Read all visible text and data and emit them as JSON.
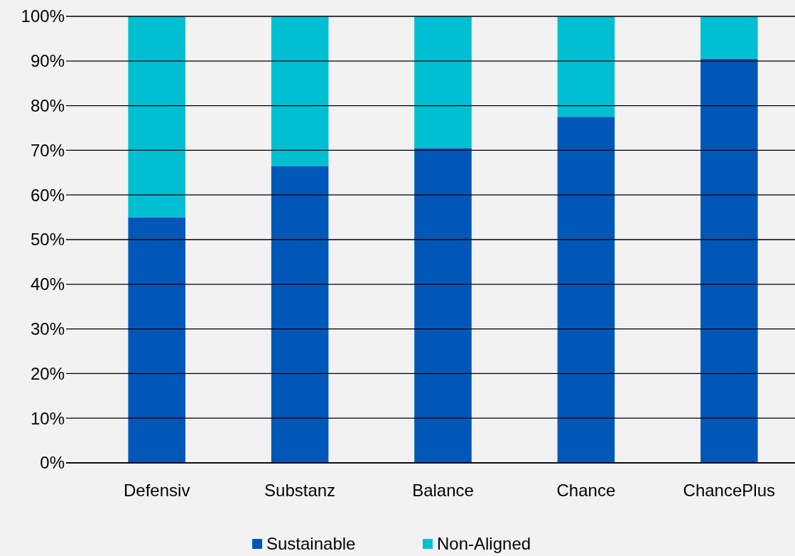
{
  "chart_data": {
    "type": "bar",
    "stacked": true,
    "categories": [
      "Defensiv",
      "Substanz",
      "Balance",
      "Chance",
      "ChancePlus"
    ],
    "series": [
      {
        "name": "Sustainable",
        "color": "#0057b8",
        "values": [
          55,
          66.5,
          70.5,
          77.5,
          90.5
        ]
      },
      {
        "name": "Non-Aligned",
        "color": "#00bfd3",
        "values": [
          45,
          33.5,
          29.5,
          22.5,
          9.5
        ]
      }
    ],
    "ylim": [
      0,
      100
    ],
    "yticks": [
      {
        "value": 0,
        "label": "0%"
      },
      {
        "value": 10,
        "label": "10%"
      },
      {
        "value": 20,
        "label": "20%"
      },
      {
        "value": 30,
        "label": "30%"
      },
      {
        "value": 40,
        "label": "40%"
      },
      {
        "value": 50,
        "label": "50%"
      },
      {
        "value": 60,
        "label": "60%"
      },
      {
        "value": 70,
        "label": "70%"
      },
      {
        "value": 80,
        "label": "80%"
      },
      {
        "value": 90,
        "label": "90%"
      },
      {
        "value": 100,
        "label": "100%"
      }
    ],
    "grid": "y",
    "legend": "bottom"
  }
}
